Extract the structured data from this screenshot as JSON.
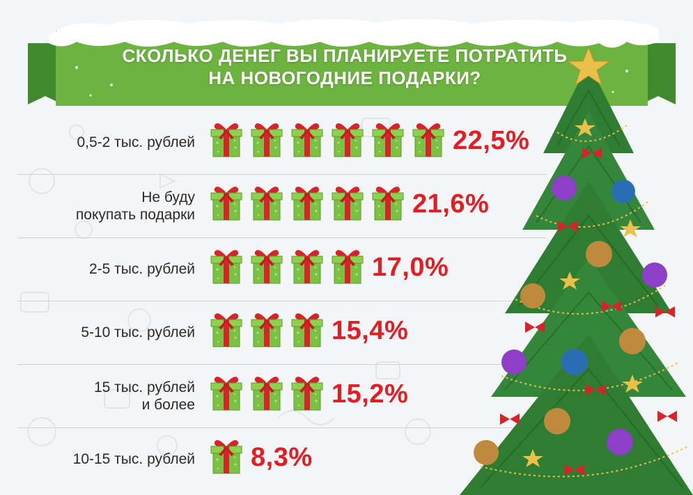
{
  "title": "СКОЛЬКО ДЕНЕГ ВЫ ПЛАНИРУЕТЕ ПОТРАТИТЬ НА НОВОГОДНИЕ ПОДАРКИ?",
  "title_lines": [
    "СКОЛЬКО ДЕНЕГ ВЫ ПЛАНИРУЕТЕ ПОТРАТИТЬ",
    "НА НОВОГОДНИЕ ПОДАРКИ?"
  ],
  "colors": {
    "banner_green": "#6db33f",
    "banner_dark_green": "#3f8a2c",
    "value_red": "#e01e24",
    "gift_green": "#7cc242",
    "ribbon_red": "#d7242a",
    "tree_green": "#2f7d32"
  },
  "icons": [
    "gift-box-icon",
    "christmas-tree-icon",
    "star-icon",
    "snow-icon"
  ],
  "chart_data": {
    "type": "bar",
    "title": "СКОЛЬКО ДЕНЕГ ВЫ ПЛАНИРУЕТЕ ПОТРАТИТЬ НА НОВОГОДНИЕ ПОДАРКИ?",
    "unit": "%",
    "categories": [
      [
        "0,5-2 тыс. рублей"
      ],
      [
        "Не буду",
        "покупать подарки"
      ],
      [
        "2-5 тыс. рублей"
      ],
      [
        "5-10 тыс. рублей"
      ],
      [
        "15 тыс. рублей",
        "и более"
      ],
      [
        "10-15 тыс. рублей"
      ]
    ],
    "values": [
      22.5,
      21.6,
      17.0,
      15.4,
      15.2,
      8.3
    ],
    "value_labels": [
      "22,5%",
      "21,6%",
      "17,0%",
      "15,4%",
      "15,2%",
      "8,3%"
    ],
    "icon_counts": [
      6,
      5,
      4,
      3,
      3,
      1
    ]
  }
}
